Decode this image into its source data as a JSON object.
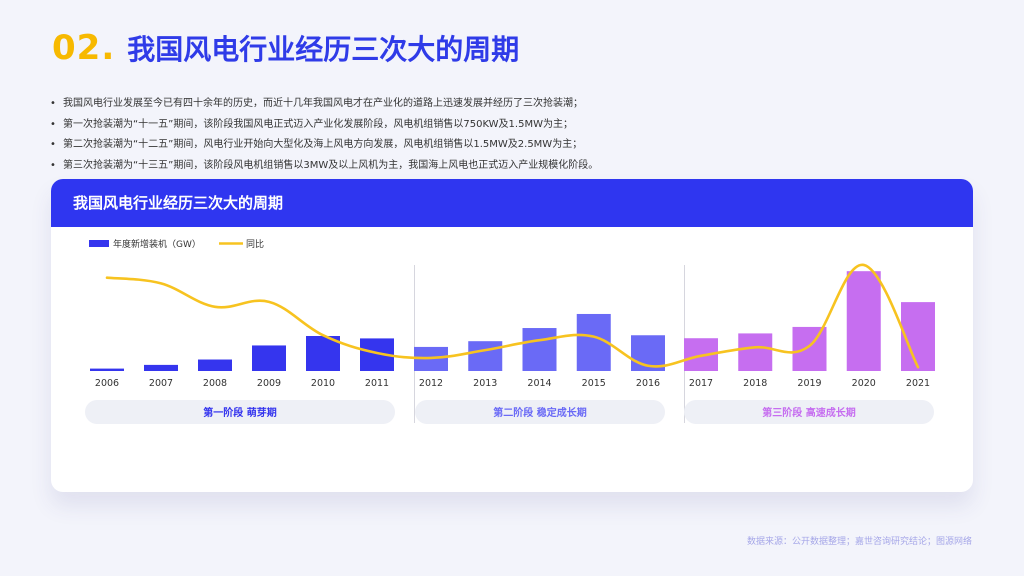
{
  "title": {
    "number": "02.",
    "text": "我国风电行业经历三次大的周期"
  },
  "bullets": [
    "我国风电行业发展至今已有四十余年的历史，而近十几年我国风电才在产业化的道路上迅速发展并经历了三次抢装潮；",
    "第一次抢装潮为“十一五”期间，该阶段我国风电正式迈入产业化发展阶段，风电机组销售以750KW及1.5MW为主；",
    "第二次抢装潮为“十二五”期间，风电行业开始向大型化及海上风电方向发展，风电机组销售以1.5MW及2.5MW为主；",
    "第三次抢装潮为“十三五”期间，该阶段风电机组销售以3MW及以上风机为主，我国海上风电也正式迈入产业规模化阶段。"
  ],
  "card": {
    "title": "我国风电行业经历三次大的周期"
  },
  "source": "数据来源：公开数据整理；嘉世咨询研究结论；图源网络",
  "colors": {
    "stage1": "#3535ee",
    "stage2": "#6a6af6",
    "stage3": "#c66ef0",
    "line": "#f7c320",
    "header": "#2f36f0",
    "title_num": "#f7b900",
    "label1": "#3535ee",
    "label2": "#6a6af6",
    "label3": "#c66ef0"
  },
  "chart_data": {
    "type": "bar",
    "categories": [
      "2006",
      "2007",
      "2008",
      "2009",
      "2010",
      "2011",
      "2012",
      "2013",
      "2014",
      "2015",
      "2016",
      "2017",
      "2018",
      "2019",
      "2020",
      "2021"
    ],
    "series": [
      {
        "name": "年度新增装机（GW）",
        "type": "bar",
        "values": [
          1.3,
          3.3,
          6.2,
          13.8,
          18.9,
          17.6,
          13.0,
          16.1,
          23.2,
          30.8,
          19.3,
          17.7,
          20.3,
          23.8,
          53.9,
          37.2
        ]
      },
      {
        "name": "同比",
        "type": "line",
        "values": [
          168,
          160,
          127,
          134,
          87,
          62,
          55,
          66,
          80,
          85,
          44,
          58,
          70,
          72,
          186,
          42
        ]
      }
    ],
    "stages": [
      {
        "label": "第一阶段",
        "name": "萌芽期",
        "start": 0,
        "end": 5
      },
      {
        "label": "第二阶段",
        "name": "稳定成长期",
        "start": 6,
        "end": 10
      },
      {
        "label": "第三阶段",
        "name": "高速成长期",
        "start": 11,
        "end": 15
      }
    ],
    "legend_position": "top-left"
  }
}
